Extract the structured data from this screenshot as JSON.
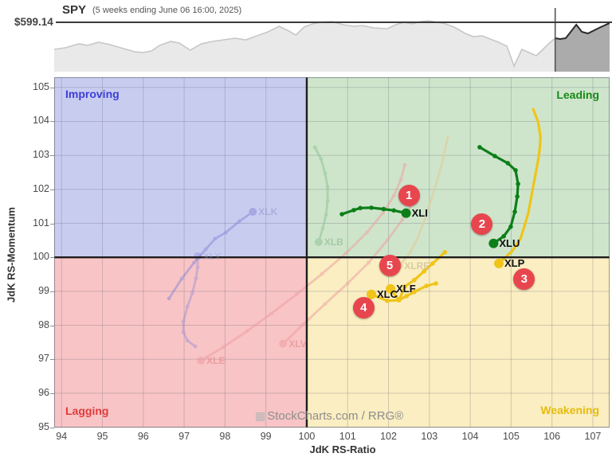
{
  "header": {
    "symbol": "SPY",
    "subtitle": "(5 weeks ending June 06 16:00, 2025)",
    "price_label": "$599.14"
  },
  "watermark": {
    "icon": "▦",
    "text": "StockCharts.com / RRG®"
  },
  "colors": {
    "price_line": "#3a3a3a",
    "mini_fill": "#e9e9ea",
    "mini_stroke": "#c7c7c9",
    "mini_highlight_fill": "#ababab",
    "mini_highlight_stroke": "#2b2b2b",
    "badge": "#e8464e",
    "divider": "#1d1d1d",
    "grid": "rgba(100,100,110,0.28)",
    "plot_border": "rgba(90,95,105,0.6)"
  },
  "chart_data": [
    {
      "type": "area",
      "name": "spy-price-sparkline",
      "title": "SPY (5 weeks ending June 06 16:00, 2025)",
      "last_price": "$599.14",
      "price_line_y": 20.5,
      "highlight_start_frac": 0.902,
      "points": [
        [
          0.0,
          54
        ],
        [
          0.02,
          52
        ],
        [
          0.045,
          47
        ],
        [
          0.06,
          49
        ],
        [
          0.08,
          45
        ],
        [
          0.1,
          48
        ],
        [
          0.12,
          52
        ],
        [
          0.145,
          57
        ],
        [
          0.16,
          58
        ],
        [
          0.175,
          56
        ],
        [
          0.19,
          49
        ],
        [
          0.21,
          44
        ],
        [
          0.225,
          46
        ],
        [
          0.245,
          55
        ],
        [
          0.265,
          47
        ],
        [
          0.285,
          44
        ],
        [
          0.305,
          42
        ],
        [
          0.325,
          40
        ],
        [
          0.345,
          42
        ],
        [
          0.365,
          37
        ],
        [
          0.385,
          32
        ],
        [
          0.405,
          25
        ],
        [
          0.42,
          30
        ],
        [
          0.435,
          36
        ],
        [
          0.45,
          26
        ],
        [
          0.465,
          22
        ],
        [
          0.48,
          20
        ],
        [
          0.5,
          19
        ],
        [
          0.52,
          23
        ],
        [
          0.54,
          25
        ],
        [
          0.555,
          24
        ],
        [
          0.575,
          27
        ],
        [
          0.6,
          28
        ],
        [
          0.615,
          23
        ],
        [
          0.63,
          20
        ],
        [
          0.645,
          22
        ],
        [
          0.66,
          19
        ],
        [
          0.675,
          18
        ],
        [
          0.69,
          20
        ],
        [
          0.705,
          22
        ],
        [
          0.72,
          26
        ],
        [
          0.74,
          34
        ],
        [
          0.755,
          38
        ],
        [
          0.77,
          37
        ],
        [
          0.785,
          41
        ],
        [
          0.8,
          45
        ],
        [
          0.815,
          50
        ],
        [
          0.828,
          75
        ],
        [
          0.842,
          54
        ],
        [
          0.855,
          58
        ],
        [
          0.868,
          62
        ],
        [
          0.88,
          54
        ],
        [
          0.89,
          47
        ],
        [
          0.902,
          40
        ],
        [
          0.911,
          41
        ],
        [
          0.921,
          40
        ],
        [
          0.94,
          23
        ],
        [
          0.95,
          32
        ],
        [
          0.961,
          34
        ],
        [
          0.981,
          27
        ],
        [
          1.0,
          21
        ]
      ]
    },
    {
      "type": "scatter",
      "name": "relative-rotation-graph",
      "xlabel": "JdK RS-Ratio",
      "ylabel": "JdK RS-Momentum",
      "xlim": [
        93.82,
        107.41
      ],
      "ylim": [
        94.99,
        105.3
      ],
      "x_ticks": [
        94,
        95,
        96,
        97,
        98,
        99,
        100,
        101,
        102,
        103,
        104,
        105,
        106,
        107
      ],
      "y_ticks": [
        95,
        96,
        97,
        98,
        99,
        100,
        101,
        102,
        103,
        104,
        105
      ],
      "quadrants": [
        {
          "label": "Improving",
          "bg": "#c8cdf0",
          "text_color": "#3d3dd8",
          "position": "top-left"
        },
        {
          "label": "Leading",
          "bg": "#cee5cc",
          "text_color": "#188a18",
          "position": "top-right"
        },
        {
          "label": "Lagging",
          "bg": "#f8c4c6",
          "text_color": "#e23b3b",
          "position": "bottom-left"
        },
        {
          "label": "Weakening",
          "bg": "#faeec2",
          "text_color": "#e5bc0e",
          "position": "bottom-right"
        }
      ],
      "series": [
        {
          "symbol": "XLE",
          "color": "#f09a9e",
          "opacity": 0.5,
          "faded": true,
          "dots": true,
          "label_color": "#e78b90",
          "label_opacity": 0.65,
          "points": [
            [
              102.4,
              102.72
            ],
            [
              102.3,
              102.28
            ],
            [
              102.13,
              101.81
            ],
            [
              101.86,
              101.3
            ],
            [
              101.47,
              100.73
            ],
            [
              100.96,
              100.12
            ],
            [
              100.37,
              99.51
            ],
            [
              99.75,
              98.91
            ],
            [
              99.13,
              98.34
            ],
            [
              98.54,
              97.83
            ],
            [
              97.96,
              97.36
            ],
            [
              97.41,
              96.96
            ]
          ]
        },
        {
          "symbol": "XLV",
          "color": "#f09a9e",
          "opacity": 0.5,
          "faded": true,
          "dots": true,
          "label_color": "#e78b90",
          "label_opacity": 0.65,
          "points": [
            [
              102.63,
              101.67
            ],
            [
              102.34,
              101.11
            ],
            [
              101.97,
              100.5
            ],
            [
              101.51,
              99.84
            ],
            [
              101.0,
              99.23
            ],
            [
              100.45,
              98.63
            ],
            [
              99.91,
              98.02
            ],
            [
              99.42,
              97.46
            ]
          ]
        },
        {
          "symbol": "XLRE",
          "color": "#ddcfa2",
          "opacity": 0.75,
          "faded": true,
          "dots": false,
          "label_color": "#cfc49b",
          "label_opacity": 0.8,
          "points": [
            [
              103.45,
              103.54
            ],
            [
              103.34,
              102.93
            ],
            [
              103.2,
              102.3
            ],
            [
              103.05,
              101.72
            ],
            [
              102.89,
              101.13
            ],
            [
              102.71,
              100.55
            ],
            [
              102.5,
              100.08
            ],
            [
              102.25,
              99.75
            ]
          ]
        },
        {
          "symbol": "XLK",
          "color": "#8585d6",
          "opacity": 0.5,
          "faded": true,
          "dots": true,
          "label_color": "#9a9ad0",
          "label_opacity": 0.6,
          "points": [
            [
              96.63,
              98.79
            ],
            [
              96.94,
              99.37
            ],
            [
              97.24,
              99.84
            ],
            [
              97.53,
              100.24
            ],
            [
              97.76,
              100.55
            ],
            [
              98.02,
              100.73
            ],
            [
              98.35,
              101.06
            ],
            [
              98.68,
              101.34
            ]
          ]
        },
        {
          "symbol": "XLY",
          "color": "#8585d6",
          "opacity": 0.38,
          "faded": true,
          "dots": true,
          "label_color": "#9a9ad0",
          "label_opacity": 0.35,
          "points": [
            [
              97.27,
              97.38
            ],
            [
              97.08,
              97.55
            ],
            [
              96.98,
              97.8
            ],
            [
              96.98,
              98.11
            ],
            [
              97.08,
              98.55
            ],
            [
              97.2,
              98.95
            ],
            [
              97.29,
              99.38
            ],
            [
              97.33,
              99.7
            ],
            [
              97.33,
              100.03
            ]
          ]
        },
        {
          "symbol": "XLB",
          "color": "#8fc493",
          "opacity": 0.55,
          "faded": true,
          "dots": true,
          "label_color": "#8bbd8f",
          "label_opacity": 0.65,
          "points": [
            [
              100.2,
              103.24
            ],
            [
              100.35,
              102.89
            ],
            [
              100.45,
              102.47
            ],
            [
              100.51,
              102.07
            ],
            [
              100.51,
              101.67
            ],
            [
              100.47,
              101.25
            ],
            [
              100.39,
              100.85
            ],
            [
              100.29,
              100.45
            ]
          ]
        },
        {
          "symbol": "XLC",
          "color": "#f0c419",
          "opacity": 1,
          "faded": false,
          "dots": true,
          "label_color": "#0f0f0f",
          "label_opacity": 1,
          "badge": {
            "label": "4",
            "x": 101.39,
            "y": 98.51
          },
          "points": [
            [
              103.16,
              99.23
            ],
            [
              102.93,
              99.16
            ],
            [
              102.63,
              98.98
            ],
            [
              102.44,
              98.86
            ],
            [
              102.25,
              98.74
            ],
            [
              101.97,
              98.72
            ],
            [
              101.58,
              98.91
            ]
          ]
        },
        {
          "symbol": "XLF",
          "color": "#f0c419",
          "opacity": 1,
          "faded": false,
          "dots": true,
          "label_color": "#0f0f0f",
          "label_opacity": 1,
          "badge": {
            "label": "5",
            "x": 102.03,
            "y": 99.75
          },
          "points": [
            [
              103.38,
              100.15
            ],
            [
              103.08,
              99.82
            ],
            [
              102.87,
              99.59
            ],
            [
              102.63,
              99.33
            ],
            [
              102.4,
              99.14
            ],
            [
              102.26,
              98.74
            ],
            [
              102.05,
              99.07
            ]
          ]
        },
        {
          "symbol": "XLP",
          "color": "#f0c419",
          "opacity": 1,
          "faded": false,
          "dots": false,
          "label_color": "#0f0f0f",
          "label_opacity": 1,
          "badge": {
            "label": "3",
            "x": 105.32,
            "y": 99.37
          },
          "points": [
            [
              105.54,
              104.36
            ],
            [
              105.66,
              103.99
            ],
            [
              105.72,
              103.54
            ],
            [
              105.7,
              103.19
            ],
            [
              105.66,
              102.84
            ],
            [
              105.6,
              102.47
            ],
            [
              105.54,
              102.09
            ],
            [
              105.48,
              101.69
            ],
            [
              105.42,
              101.3
            ],
            [
              105.32,
              100.9
            ],
            [
              105.23,
              100.55
            ],
            [
              105.03,
              100.19
            ],
            [
              104.7,
              99.82
            ]
          ]
        },
        {
          "symbol": "XLI",
          "color": "#0c7f18",
          "opacity": 1,
          "faded": false,
          "dots": true,
          "label_color": "#0f0f0f",
          "label_opacity": 1,
          "badge": {
            "label": "1",
            "x": 102.5,
            "y": 101.83
          },
          "points": [
            [
              100.86,
              101.27
            ],
            [
              101.15,
              101.39
            ],
            [
              101.31,
              101.45
            ],
            [
              101.58,
              101.46
            ],
            [
              101.88,
              101.42
            ],
            [
              102.13,
              101.38
            ],
            [
              102.43,
              101.3
            ]
          ]
        },
        {
          "symbol": "XLU",
          "color": "#0c7f18",
          "opacity": 1,
          "faded": false,
          "dots": true,
          "label_color": "#0f0f0f",
          "label_opacity": 1,
          "badge": {
            "label": "2",
            "x": 104.29,
            "y": 100.97
          },
          "points": [
            [
              104.23,
              103.24
            ],
            [
              104.6,
              102.98
            ],
            [
              104.92,
              102.77
            ],
            [
              105.11,
              102.56
            ],
            [
              105.17,
              102.16
            ],
            [
              105.15,
              101.79
            ],
            [
              105.09,
              101.34
            ],
            [
              104.99,
              100.9
            ],
            [
              104.82,
              100.62
            ],
            [
              104.57,
              100.41
            ]
          ]
        }
      ]
    }
  ]
}
